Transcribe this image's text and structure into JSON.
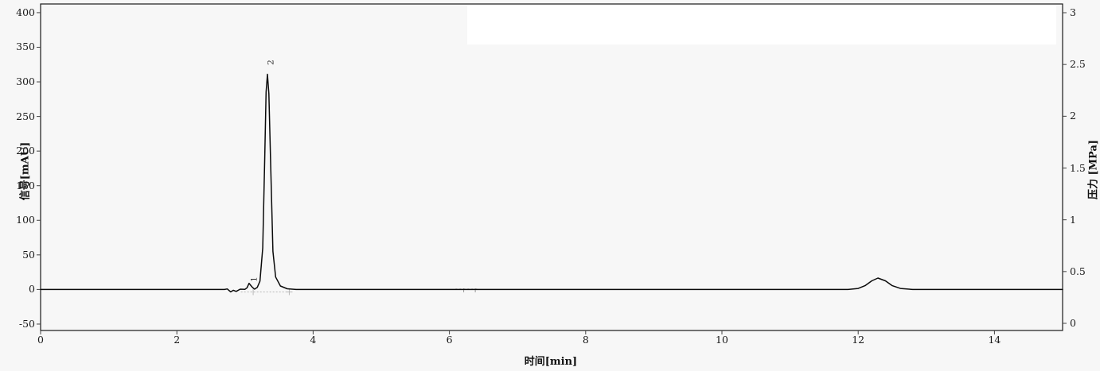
{
  "figure": {
    "background": "#f7f7f7",
    "plot_background": "#f7f7f7",
    "spine_color": "#1a1a1a",
    "tick_color": "#444444",
    "trace_color": "#0a0a0a",
    "legend_box_color": "#ffffff"
  },
  "chart_data": {
    "type": "line",
    "subtype": "chromatogram",
    "title": "",
    "xlabel": "时间[min]",
    "ylabel_left": "信号[mAU]",
    "ylabel_right": "压力 [MPa]",
    "xlim": [
      0,
      15
    ],
    "ylim_left": [
      -50,
      400
    ],
    "ylim_right": [
      0,
      3
    ],
    "grid": false,
    "x_ticks": [
      "0",
      "2",
      "4",
      "6",
      "8",
      "10",
      "12",
      "14"
    ],
    "y_ticks_left": [
      "400",
      "350",
      "300",
      "250",
      "200",
      "150",
      "100",
      "50",
      "0",
      "-50"
    ],
    "y_ticks_right": [
      "3",
      "2.5",
      "2",
      "1.5",
      "1",
      "0.5",
      "0"
    ],
    "legend": "blank white box, no entries visible",
    "series": [
      {
        "name": "signal",
        "units": "mAU",
        "axis": "left",
        "color": "#0a0a0a",
        "points": [
          [
            0.0,
            0
          ],
          [
            2.7,
            0
          ],
          [
            2.74,
            0.8
          ],
          [
            2.79,
            -3.5
          ],
          [
            2.83,
            -1.2
          ],
          [
            2.87,
            -2.8
          ],
          [
            2.93,
            0.5
          ],
          [
            3.0,
            0.2
          ],
          [
            3.03,
            2.5
          ],
          [
            3.06,
            9
          ],
          [
            3.1,
            4
          ],
          [
            3.14,
            0.5
          ],
          [
            3.18,
            3
          ],
          [
            3.22,
            12
          ],
          [
            3.26,
            60
          ],
          [
            3.29,
            190
          ],
          [
            3.31,
            285
          ],
          [
            3.33,
            311
          ],
          [
            3.35,
            283
          ],
          [
            3.38,
            170
          ],
          [
            3.41,
            55
          ],
          [
            3.45,
            18
          ],
          [
            3.52,
            5
          ],
          [
            3.62,
            1
          ],
          [
            3.75,
            0
          ],
          [
            6.0,
            0
          ],
          [
            11.85,
            0
          ],
          [
            12.0,
            1.5
          ],
          [
            12.1,
            5.5
          ],
          [
            12.2,
            12.5
          ],
          [
            12.29,
            16.5
          ],
          [
            12.4,
            12.5
          ],
          [
            12.5,
            5.5
          ],
          [
            12.62,
            1.5
          ],
          [
            12.8,
            0
          ],
          [
            15.0,
            0
          ]
        ]
      }
    ],
    "peaks": [
      {
        "label": "1",
        "time_min": 3.06,
        "height_mAU": 9
      },
      {
        "label": "2",
        "time_min": 3.33,
        "height_mAU": 311
      },
      {
        "label": "",
        "time_min": 12.29,
        "height_mAU": 16.5
      }
    ],
    "integration": {
      "color": "#b8b8b8",
      "baseline_dash_span_min": [
        2.94,
        3.65
      ],
      "start_tick_min": 3.12,
      "end_mark_min": 3.65,
      "extra_dash_span_min": [
        6.09,
        6.42
      ],
      "extra_tick_min": [
        6.21,
        6.38
      ]
    }
  }
}
